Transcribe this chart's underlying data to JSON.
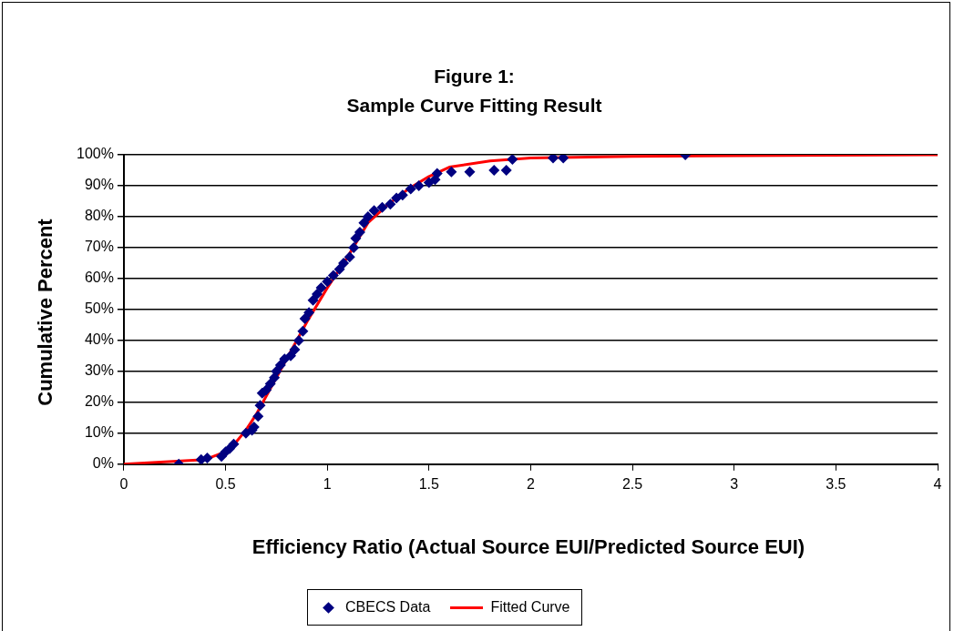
{
  "chart_data": {
    "type": "scatter",
    "title": "Figure 1:",
    "subtitle": "Sample Curve Fitting Result",
    "xlabel": "Efficiency Ratio (Actual Source EUI/Predicted Source EUI)",
    "ylabel": "Cumulative Percent",
    "xlim": [
      0,
      4
    ],
    "xticks": [
      0,
      0.5,
      1,
      1.5,
      2,
      2.5,
      3,
      3.5,
      4
    ],
    "ylim": [
      0,
      100
    ],
    "yticks": [
      {
        "value": 0,
        "label": "0%"
      },
      {
        "value": 10,
        "label": "10%"
      },
      {
        "value": 20,
        "label": "20%"
      },
      {
        "value": 30,
        "label": "30%"
      },
      {
        "value": 40,
        "label": "40%"
      },
      {
        "value": 50,
        "label": "50%"
      },
      {
        "value": 60,
        "label": "60%"
      },
      {
        "value": 70,
        "label": "70%"
      },
      {
        "value": 80,
        "label": "80%"
      },
      {
        "value": 90,
        "label": "90%"
      },
      {
        "value": 100,
        "label": "100%"
      }
    ],
    "grid": "y",
    "legend": "bottom",
    "series": [
      {
        "name": "CBECS Data",
        "marker": "diamond",
        "color": "#000080",
        "x": [
          0.27,
          0.38,
          0.41,
          0.48,
          0.5,
          0.52,
          0.54,
          0.6,
          0.63,
          0.64,
          0.66,
          0.67,
          0.68,
          0.7,
          0.72,
          0.74,
          0.75,
          0.77,
          0.79,
          0.82,
          0.84,
          0.86,
          0.88,
          0.89,
          0.91,
          0.93,
          0.95,
          0.97,
          1.0,
          1.03,
          1.06,
          1.08,
          1.11,
          1.13,
          1.14,
          1.16,
          1.18,
          1.2,
          1.23,
          1.27,
          1.31,
          1.34,
          1.37,
          1.41,
          1.45,
          1.5,
          1.53,
          1.54,
          1.61,
          1.7,
          1.82,
          1.88,
          1.91,
          2.11,
          2.16,
          2.76
        ],
        "values": [
          0,
          1.5,
          2,
          2.5,
          4,
          5,
          6.5,
          10,
          11,
          12,
          15.5,
          19,
          23,
          24,
          26,
          28,
          30,
          32,
          34,
          35,
          37,
          40,
          43,
          47,
          49,
          53,
          55,
          57,
          59,
          61,
          63,
          65,
          67,
          70,
          73,
          75,
          78,
          80,
          82,
          83,
          84,
          86,
          87,
          89,
          90,
          91,
          92,
          94,
          94.5,
          94.5,
          95,
          95,
          98.5,
          99,
          99,
          100
        ]
      },
      {
        "name": "Fitted Curve",
        "type": "line",
        "marker": "none",
        "line_style": "solid",
        "color": "#ff0000",
        "x": [
          0,
          0.4,
          0.5,
          0.55,
          0.6,
          0.65,
          0.7,
          0.8,
          0.9,
          1.0,
          1.1,
          1.2,
          1.3,
          1.4,
          1.5,
          1.6,
          1.8,
          2,
          2.5,
          3,
          4
        ],
        "values": [
          0,
          1.5,
          4,
          7,
          11,
          16,
          22,
          34,
          46,
          57,
          67,
          78,
          84,
          89,
          93,
          96,
          98,
          99,
          99.5,
          99.7,
          100
        ]
      }
    ]
  }
}
